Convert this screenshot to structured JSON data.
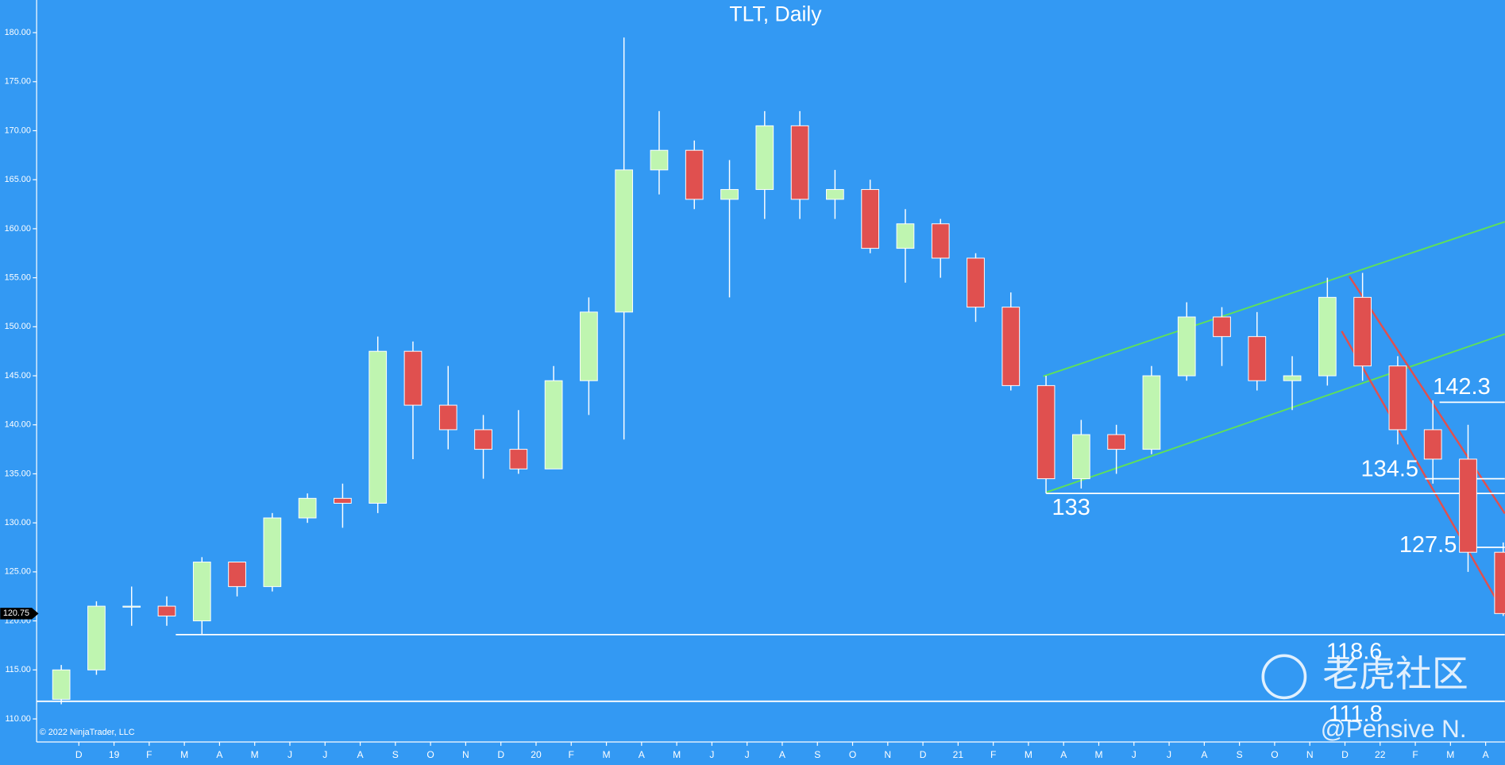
{
  "chart_data": {
    "type": "candlestick",
    "title": "TLT, Daily",
    "categories": [
      null,
      "D",
      "19",
      "F",
      "M",
      "A",
      "M",
      "J",
      "J",
      "A",
      "S",
      "O",
      "N",
      "D",
      "20",
      "F",
      "M",
      "A",
      "M",
      "J",
      "J",
      "A",
      "S",
      "O",
      "N",
      "D",
      "21",
      "F",
      "M",
      "A",
      "M",
      "J",
      "J",
      "A",
      "S",
      "O",
      "N",
      "D",
      "22",
      "F",
      "M",
      "A"
    ],
    "open": [
      112,
      115,
      121.5,
      121.5,
      120,
      126,
      123.5,
      130.5,
      132.5,
      132,
      147.5,
      142,
      139.5,
      137.5,
      135.5,
      144.5,
      151.5,
      166,
      168,
      163,
      164,
      170.5,
      163,
      164,
      158,
      160.5,
      157,
      152,
      144,
      134.5,
      139,
      137.5,
      145,
      151,
      149,
      144.5,
      145,
      153,
      146,
      139.5,
      136.5,
      127
    ],
    "high": [
      115.5,
      122,
      123.5,
      122.5,
      126.5,
      126,
      131,
      133,
      134,
      149,
      148.5,
      146,
      141,
      141.5,
      146,
      153,
      179.5,
      172,
      169,
      167,
      172,
      172,
      166,
      165,
      162,
      161,
      157.5,
      153.5,
      145,
      140.5,
      140,
      146,
      152.5,
      152,
      151.5,
      147,
      155,
      155.5,
      147,
      142.5,
      140,
      128
    ],
    "low": [
      111.5,
      114.5,
      119.5,
      119.5,
      118.6,
      122.5,
      123,
      130,
      129.5,
      131,
      136.5,
      137.5,
      134.5,
      135,
      135.5,
      141,
      138.5,
      163.5,
      162,
      153,
      161,
      161,
      161,
      157.5,
      154.5,
      155,
      150.5,
      143.5,
      133,
      133.5,
      135,
      137,
      144.5,
      146,
      143.5,
      141.5,
      144,
      144.5,
      138,
      134,
      125,
      120.5
    ],
    "close": [
      115,
      121.5,
      121.5,
      120.5,
      126,
      123.5,
      130.5,
      132.5,
      132,
      147.5,
      142,
      139.5,
      137.5,
      135.5,
      144.5,
      151.5,
      166,
      168,
      163,
      164,
      170.5,
      163,
      164,
      158,
      160.5,
      157,
      152,
      144,
      134.5,
      139,
      137.5,
      145,
      151,
      149,
      144.5,
      145,
      153,
      146,
      139.5,
      136.5,
      127,
      120.75
    ],
    "up_color": "#bff5b0",
    "down_color": "#e0504f",
    "ylim": [
      107.65,
      183.33
    ],
    "yticks": [
      {
        "value": 110,
        "label": "110.00"
      },
      {
        "value": 115,
        "label": "115.00"
      },
      {
        "value": 120,
        "label": "120.00"
      },
      {
        "value": 125,
        "label": "125.00"
      },
      {
        "value": 130,
        "label": "130.00"
      },
      {
        "value": 135,
        "label": "135.00"
      },
      {
        "value": 140,
        "label": "140.00"
      },
      {
        "value": 145,
        "label": "145.00"
      },
      {
        "value": 150,
        "label": "150.00"
      },
      {
        "value": 155,
        "label": "155.00"
      },
      {
        "value": 160,
        "label": "160.00"
      },
      {
        "value": 165,
        "label": "165.00"
      },
      {
        "value": 170,
        "label": "170.00"
      },
      {
        "value": 175,
        "label": "175.00"
      },
      {
        "value": 180,
        "label": "180.00"
      }
    ],
    "levels": [
      142.3,
      134.5,
      133,
      127.5,
      118.6,
      111.8
    ],
    "copyright": "© 2022 NinjaTrader, LLC",
    "watermark": "老虎社区",
    "author": "@Pensive N."
  }
}
